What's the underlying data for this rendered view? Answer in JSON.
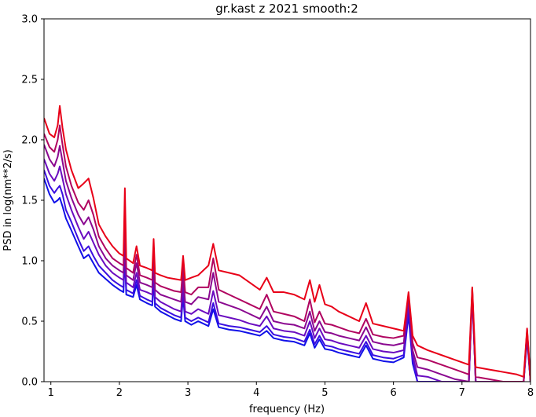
{
  "chart_data": {
    "type": "line",
    "title": "gr.kast z 2021 smooth:2",
    "xlabel": "frequency (Hz)",
    "ylabel": "PSD in log(nm**2/s)",
    "xlim": [
      0.9,
      8.0
    ],
    "ylim": [
      0.0,
      3.0
    ],
    "xticks": [
      "1",
      "2",
      "3",
      "4",
      "5",
      "6",
      "7",
      "8"
    ],
    "yticks": [
      "0.0",
      "0.5",
      "1.0",
      "1.5",
      "2.0",
      "2.5",
      "3.0"
    ],
    "grid": false,
    "legend": "none",
    "colors": [
      "#1010e8",
      "#3a0ee0",
      "#6a0cc0",
      "#8a0890",
      "#b00460",
      "#e80018"
    ],
    "series": [
      {
        "x": [
          0.9,
          0.98,
          1.05,
          1.1,
          1.13,
          1.17,
          1.22,
          1.3,
          1.4,
          1.48,
          1.55,
          1.62,
          1.7,
          1.8,
          1.9,
          2.0,
          2.06,
          2.08,
          2.1,
          2.2,
          2.25,
          2.3,
          2.4,
          2.48,
          2.5,
          2.52,
          2.6,
          2.7,
          2.8,
          2.9,
          2.93,
          2.96,
          3.05,
          3.15,
          3.3,
          3.37,
          3.45,
          3.6,
          3.75,
          3.9,
          4.05,
          4.15,
          4.25,
          4.4,
          4.55,
          4.7,
          4.78,
          4.85,
          4.92,
          5.0,
          5.1,
          5.2,
          5.35,
          5.5,
          5.6,
          5.7,
          5.85,
          6.0,
          6.15,
          6.22,
          6.28,
          6.35,
          6.5,
          6.7,
          6.9,
          7.1,
          7.15,
          7.2,
          7.4,
          7.6,
          7.8,
          7.9,
          7.95,
          8.0
        ],
        "y": [
          1.68,
          1.55,
          1.48,
          1.5,
          1.52,
          1.45,
          1.35,
          1.25,
          1.12,
          1.02,
          1.05,
          0.98,
          0.9,
          0.85,
          0.8,
          0.76,
          0.74,
          1.05,
          0.72,
          0.7,
          0.8,
          0.68,
          0.65,
          0.63,
          0.85,
          0.62,
          0.58,
          0.55,
          0.52,
          0.5,
          0.7,
          0.5,
          0.47,
          0.5,
          0.46,
          0.6,
          0.45,
          0.43,
          0.42,
          0.4,
          0.38,
          0.42,
          0.36,
          0.34,
          0.33,
          0.3,
          0.4,
          0.28,
          0.35,
          0.27,
          0.26,
          0.24,
          0.22,
          0.2,
          0.3,
          0.19,
          0.17,
          0.16,
          0.2,
          0.55,
          0.15,
          0.0,
          0.0,
          0.0,
          0.0,
          0.0,
          0.72,
          0.0,
          0.0,
          0.0,
          0.0,
          0.0,
          0.35,
          0.0
        ]
      },
      {
        "x": [
          0.9,
          0.98,
          1.05,
          1.1,
          1.13,
          1.17,
          1.22,
          1.3,
          1.4,
          1.48,
          1.55,
          1.62,
          1.7,
          1.8,
          1.9,
          2.0,
          2.06,
          2.08,
          2.1,
          2.2,
          2.25,
          2.3,
          2.4,
          2.48,
          2.5,
          2.52,
          2.6,
          2.7,
          2.8,
          2.9,
          2.93,
          2.96,
          3.05,
          3.15,
          3.3,
          3.37,
          3.45,
          3.6,
          3.75,
          3.9,
          4.05,
          4.15,
          4.25,
          4.4,
          4.55,
          4.7,
          4.78,
          4.85,
          4.92,
          5.0,
          5.1,
          5.2,
          5.35,
          5.5,
          5.6,
          5.7,
          5.85,
          6.0,
          6.15,
          6.22,
          6.28,
          6.35,
          6.5,
          6.7,
          6.9,
          7.1,
          7.15,
          7.2,
          7.4,
          7.6,
          7.8,
          7.9,
          7.95,
          8.0
        ],
        "y": [
          1.75,
          1.62,
          1.56,
          1.6,
          1.62,
          1.55,
          1.42,
          1.32,
          1.18,
          1.08,
          1.12,
          1.04,
          0.96,
          0.9,
          0.84,
          0.8,
          0.78,
          1.1,
          0.76,
          0.73,
          0.84,
          0.71,
          0.68,
          0.66,
          0.9,
          0.65,
          0.61,
          0.58,
          0.55,
          0.53,
          0.74,
          0.53,
          0.5,
          0.53,
          0.49,
          0.65,
          0.48,
          0.46,
          0.45,
          0.43,
          0.41,
          0.46,
          0.39,
          0.37,
          0.36,
          0.33,
          0.43,
          0.31,
          0.38,
          0.3,
          0.29,
          0.27,
          0.25,
          0.23,
          0.33,
          0.22,
          0.2,
          0.19,
          0.22,
          0.6,
          0.18,
          0.0,
          0.0,
          0.0,
          0.0,
          0.0,
          0.74,
          0.0,
          0.0,
          0.0,
          0.0,
          0.0,
          0.38,
          0.0
        ]
      },
      {
        "x": [
          0.9,
          0.98,
          1.05,
          1.1,
          1.13,
          1.17,
          1.22,
          1.3,
          1.4,
          1.48,
          1.55,
          1.62,
          1.7,
          1.8,
          1.9,
          2.0,
          2.06,
          2.08,
          2.1,
          2.2,
          2.25,
          2.3,
          2.4,
          2.48,
          2.5,
          2.52,
          2.6,
          2.7,
          2.8,
          2.9,
          2.93,
          2.96,
          3.05,
          3.15,
          3.3,
          3.37,
          3.45,
          3.6,
          3.75,
          3.9,
          4.05,
          4.15,
          4.25,
          4.4,
          4.55,
          4.7,
          4.78,
          4.85,
          4.92,
          5.0,
          5.1,
          5.2,
          5.35,
          5.5,
          5.6,
          5.7,
          5.85,
          6.0,
          6.15,
          6.22,
          6.28,
          6.35,
          6.5,
          6.7,
          6.9,
          7.1,
          7.15,
          7.2,
          7.4,
          7.6,
          7.8,
          7.9,
          7.95,
          8.0
        ],
        "y": [
          1.84,
          1.72,
          1.66,
          1.72,
          1.78,
          1.68,
          1.55,
          1.42,
          1.28,
          1.18,
          1.24,
          1.15,
          1.05,
          0.96,
          0.9,
          0.86,
          0.84,
          1.2,
          0.82,
          0.78,
          0.9,
          0.76,
          0.74,
          0.72,
          0.98,
          0.7,
          0.66,
          0.63,
          0.6,
          0.58,
          0.8,
          0.58,
          0.56,
          0.6,
          0.56,
          0.75,
          0.55,
          0.53,
          0.51,
          0.48,
          0.46,
          0.54,
          0.44,
          0.42,
          0.41,
          0.38,
          0.5,
          0.36,
          0.44,
          0.35,
          0.34,
          0.32,
          0.3,
          0.28,
          0.38,
          0.27,
          0.25,
          0.24,
          0.26,
          0.65,
          0.22,
          0.05,
          0.04,
          0.0,
          0.0,
          0.0,
          0.75,
          0.0,
          0.0,
          0.0,
          0.0,
          0.0,
          0.4,
          0.0
        ]
      },
      {
        "x": [
          0.9,
          0.98,
          1.05,
          1.1,
          1.13,
          1.17,
          1.22,
          1.3,
          1.4,
          1.48,
          1.55,
          1.62,
          1.7,
          1.8,
          1.9,
          2.0,
          2.06,
          2.08,
          2.1,
          2.2,
          2.25,
          2.3,
          2.4,
          2.48,
          2.5,
          2.52,
          2.6,
          2.7,
          2.8,
          2.9,
          2.93,
          2.96,
          3.05,
          3.15,
          3.3,
          3.37,
          3.45,
          3.6,
          3.75,
          3.9,
          4.05,
          4.15,
          4.25,
          4.4,
          4.55,
          4.7,
          4.78,
          4.85,
          4.92,
          5.0,
          5.1,
          5.2,
          5.35,
          5.5,
          5.6,
          5.7,
          5.85,
          6.0,
          6.15,
          6.22,
          6.28,
          6.35,
          6.5,
          6.7,
          6.9,
          7.1,
          7.15,
          7.2,
          7.4,
          7.6,
          7.8,
          7.9,
          7.95,
          8.0
        ],
        "y": [
          1.96,
          1.84,
          1.78,
          1.86,
          1.95,
          1.82,
          1.66,
          1.52,
          1.38,
          1.3,
          1.36,
          1.26,
          1.12,
          1.02,
          0.96,
          0.92,
          0.9,
          1.3,
          0.88,
          0.84,
          0.98,
          0.82,
          0.8,
          0.78,
          1.05,
          0.76,
          0.72,
          0.7,
          0.68,
          0.66,
          0.88,
          0.66,
          0.64,
          0.7,
          0.68,
          0.9,
          0.66,
          0.63,
          0.6,
          0.56,
          0.52,
          0.62,
          0.5,
          0.48,
          0.47,
          0.44,
          0.58,
          0.42,
          0.5,
          0.41,
          0.4,
          0.38,
          0.36,
          0.34,
          0.45,
          0.33,
          0.31,
          0.3,
          0.32,
          0.7,
          0.26,
          0.12,
          0.1,
          0.06,
          0.02,
          0.0,
          0.76,
          0.0,
          0.0,
          0.0,
          0.0,
          0.0,
          0.42,
          0.0
        ]
      },
      {
        "x": [
          0.9,
          0.98,
          1.05,
          1.1,
          1.13,
          1.17,
          1.22,
          1.3,
          1.4,
          1.48,
          1.55,
          1.62,
          1.7,
          1.8,
          1.9,
          2.0,
          2.06,
          2.08,
          2.1,
          2.2,
          2.25,
          2.3,
          2.4,
          2.48,
          2.5,
          2.52,
          2.6,
          2.7,
          2.8,
          2.9,
          2.93,
          2.96,
          3.05,
          3.15,
          3.3,
          3.37,
          3.45,
          3.6,
          3.75,
          3.9,
          4.05,
          4.15,
          4.25,
          4.4,
          4.55,
          4.7,
          4.78,
          4.85,
          4.92,
          5.0,
          5.1,
          5.2,
          5.35,
          5.5,
          5.6,
          5.7,
          5.85,
          6.0,
          6.15,
          6.22,
          6.28,
          6.35,
          6.5,
          6.7,
          6.9,
          7.1,
          7.15,
          7.2,
          7.4,
          7.6,
          7.8,
          7.9,
          7.95,
          8.0
        ],
        "y": [
          2.05,
          1.94,
          1.9,
          2.0,
          2.12,
          1.96,
          1.78,
          1.62,
          1.48,
          1.42,
          1.5,
          1.38,
          1.2,
          1.1,
          1.02,
          0.98,
          0.96,
          1.42,
          0.94,
          0.9,
          1.05,
          0.88,
          0.86,
          0.84,
          1.12,
          0.82,
          0.79,
          0.77,
          0.75,
          0.74,
          0.96,
          0.74,
          0.72,
          0.78,
          0.78,
          1.02,
          0.76,
          0.72,
          0.68,
          0.64,
          0.6,
          0.72,
          0.58,
          0.56,
          0.54,
          0.5,
          0.68,
          0.49,
          0.58,
          0.48,
          0.47,
          0.45,
          0.42,
          0.4,
          0.52,
          0.39,
          0.37,
          0.36,
          0.38,
          0.72,
          0.32,
          0.2,
          0.18,
          0.14,
          0.1,
          0.06,
          0.77,
          0.04,
          0.02,
          0.0,
          0.0,
          0.0,
          0.43,
          0.0
        ]
      },
      {
        "x": [
          0.9,
          0.98,
          1.05,
          1.1,
          1.13,
          1.17,
          1.22,
          1.3,
          1.4,
          1.48,
          1.55,
          1.62,
          1.7,
          1.8,
          1.9,
          2.0,
          2.06,
          2.08,
          2.1,
          2.2,
          2.25,
          2.3,
          2.4,
          2.48,
          2.5,
          2.52,
          2.6,
          2.7,
          2.8,
          2.9,
          2.93,
          2.96,
          3.05,
          3.15,
          3.3,
          3.37,
          3.45,
          3.6,
          3.75,
          3.9,
          4.05,
          4.15,
          4.25,
          4.4,
          4.55,
          4.7,
          4.78,
          4.85,
          4.92,
          5.0,
          5.1,
          5.2,
          5.35,
          5.5,
          5.6,
          5.7,
          5.85,
          6.0,
          6.15,
          6.22,
          6.28,
          6.35,
          6.5,
          6.7,
          6.9,
          7.1,
          7.15,
          7.2,
          7.4,
          7.6,
          7.8,
          7.9,
          7.95,
          8.0
        ],
        "y": [
          2.18,
          2.05,
          2.02,
          2.12,
          2.28,
          2.1,
          1.92,
          1.75,
          1.6,
          1.64,
          1.68,
          1.52,
          1.3,
          1.2,
          1.12,
          1.06,
          1.04,
          1.6,
          1.02,
          0.98,
          1.12,
          0.96,
          0.94,
          0.92,
          1.18,
          0.9,
          0.88,
          0.86,
          0.85,
          0.84,
          1.04,
          0.84,
          0.86,
          0.88,
          0.96,
          1.14,
          0.92,
          0.9,
          0.88,
          0.82,
          0.76,
          0.86,
          0.74,
          0.74,
          0.72,
          0.68,
          0.84,
          0.66,
          0.8,
          0.64,
          0.62,
          0.58,
          0.54,
          0.5,
          0.65,
          0.48,
          0.46,
          0.44,
          0.42,
          0.74,
          0.38,
          0.3,
          0.26,
          0.22,
          0.18,
          0.14,
          0.78,
          0.12,
          0.1,
          0.08,
          0.06,
          0.04,
          0.44,
          0.02
        ]
      }
    ]
  }
}
